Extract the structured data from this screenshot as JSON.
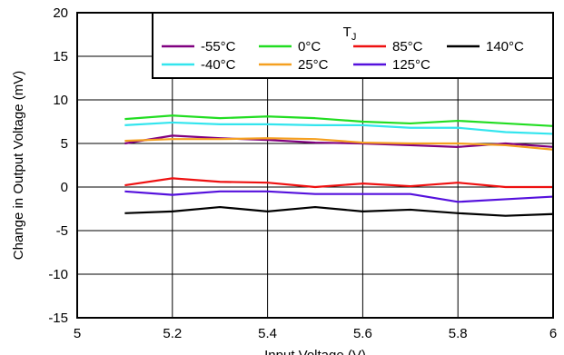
{
  "chart_data": {
    "type": "line",
    "title": "",
    "xlabel": "Input Voltage (V)",
    "ylabel": "Change in Output Voltage (mV)",
    "xlim": [
      5,
      6
    ],
    "ylim": [
      -15,
      20
    ],
    "x_ticks": [
      "5",
      "5.2",
      "5.4",
      "5.6",
      "5.8",
      "6"
    ],
    "y_ticks": [
      "-15",
      "-10",
      "-5",
      "0",
      "5",
      "10",
      "15",
      "20"
    ],
    "grid": true,
    "legend": {
      "title_main": "T",
      "title_sub": "J",
      "placement": "top-right"
    },
    "x": [
      5.1,
      5.2,
      5.3,
      5.4,
      5.5,
      5.6,
      5.7,
      5.8,
      5.9,
      6.0
    ],
    "series": [
      {
        "name": "-55°C",
        "color": "#800080",
        "values": [
          5.0,
          5.9,
          5.6,
          5.4,
          5.1,
          5.0,
          4.8,
          4.6,
          5.0,
          4.6
        ]
      },
      {
        "name": "0°C",
        "color": "#22dd22",
        "values": [
          7.8,
          8.2,
          7.9,
          8.1,
          7.9,
          7.5,
          7.3,
          7.6,
          7.3,
          7.0
        ]
      },
      {
        "name": "85°C",
        "color": "#ee1111",
        "values": [
          0.2,
          1.0,
          0.6,
          0.5,
          0.0,
          0.4,
          0.1,
          0.5,
          0.0,
          0.0
        ]
      },
      {
        "name": "140°C",
        "color": "#000000",
        "values": [
          -3.0,
          -2.8,
          -2.3,
          -2.8,
          -2.3,
          -2.8,
          -2.6,
          -3.0,
          -3.3,
          -3.1
        ]
      },
      {
        "name": "-40°C",
        "color": "#33e5ee",
        "values": [
          7.1,
          7.4,
          7.2,
          7.2,
          7.1,
          7.1,
          6.8,
          6.8,
          6.3,
          6.1
        ]
      },
      {
        "name": "25°C",
        "color": "#f5a020",
        "values": [
          5.3,
          5.5,
          5.5,
          5.6,
          5.5,
          5.1,
          5.0,
          5.0,
          4.8,
          4.3
        ]
      },
      {
        "name": "125°C",
        "color": "#5511dd",
        "values": [
          -0.5,
          -0.9,
          -0.5,
          -0.5,
          -0.8,
          -0.8,
          -0.8,
          -1.7,
          -1.4,
          -1.1
        ]
      }
    ]
  }
}
